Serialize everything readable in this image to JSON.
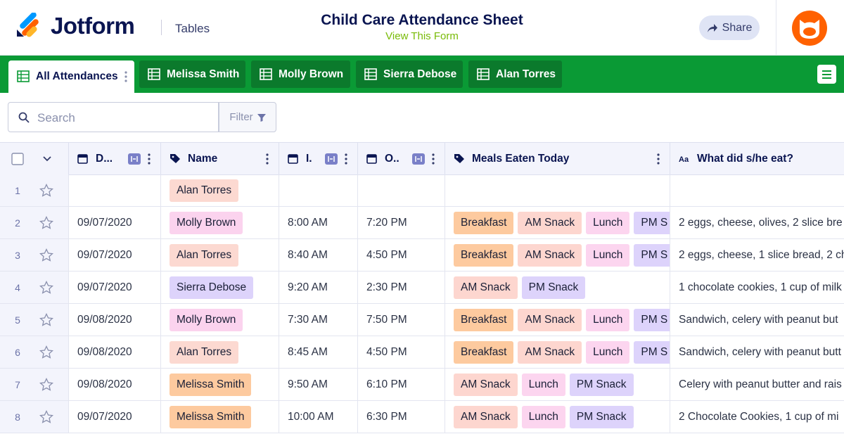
{
  "header": {
    "brand": "Jotform",
    "section": "Tables",
    "title": "Child Care Attendance Sheet",
    "subtitle": "View This Form",
    "share": "Share"
  },
  "tabs": [
    "All Attendances",
    "Melissa Smith",
    "Molly Brown",
    "Sierra Debose",
    "Alan Torres"
  ],
  "toolbar": {
    "search": "Search",
    "filter": "Filter"
  },
  "table": {
    "columns": [
      "D...",
      "Name",
      "I.",
      "O..",
      "Meals Eaten Today",
      "What did s/he eat?"
    ],
    "rows": [
      {
        "num": 1,
        "name": {
          "text": "Alan Torres",
          "color": "#fcd9d1"
        }
      },
      {
        "num": 2,
        "date": "09/07/2020",
        "name": {
          "text": "Molly Brown",
          "color": "#fbd3ee"
        },
        "in": "8:00 AM",
        "out": "7:20 PM",
        "meals": [
          {
            "text": "Breakfast",
            "color": "#fdca9f"
          },
          {
            "text": "AM Snack",
            "color": "#fdd6cf"
          },
          {
            "text": "Lunch",
            "color": "#fcd5ef"
          },
          {
            "text": "PM S",
            "color": "#ddd3fb"
          }
        ],
        "ate": "2 eggs, cheese, olives, 2 slice bre"
      },
      {
        "num": 3,
        "date": "09/07/2020",
        "name": {
          "text": "Alan Torres",
          "color": "#fcd9d1"
        },
        "in": "8:40 AM",
        "out": "4:50 PM",
        "meals": [
          {
            "text": "Breakfast",
            "color": "#fdca9f"
          },
          {
            "text": "AM Snack",
            "color": "#fdd6cf"
          },
          {
            "text": "Lunch",
            "color": "#fcd5ef"
          },
          {
            "text": "PM S",
            "color": "#ddd3fb"
          }
        ],
        "ate": "2 eggs, cheese, 1 slice bread, 2 ch"
      },
      {
        "num": 4,
        "date": "09/07/2020",
        "name": {
          "text": "Sierra Debose",
          "color": "#ddd3fb"
        },
        "in": "9:20 AM",
        "out": "2:30 PM",
        "meals": [
          {
            "text": "AM Snack",
            "color": "#fdd6cf"
          },
          {
            "text": "PM Snack",
            "color": "#ddd3fb"
          }
        ],
        "ate": "1 chocolate cookies, 1 cup of milk"
      },
      {
        "num": 5,
        "date": "09/08/2020",
        "name": {
          "text": "Molly Brown",
          "color": "#fbd3ee"
        },
        "in": "7:30 AM",
        "out": "7:50 PM",
        "meals": [
          {
            "text": "Breakfast",
            "color": "#fdca9f"
          },
          {
            "text": "AM Snack",
            "color": "#fdd6cf"
          },
          {
            "text": "Lunch",
            "color": "#fcd5ef"
          },
          {
            "text": "PM S",
            "color": "#ddd3fb"
          }
        ],
        "ate": "Sandwich, celery with peanut but"
      },
      {
        "num": 6,
        "date": "09/08/2020",
        "name": {
          "text": "Alan Torres",
          "color": "#fcd9d1"
        },
        "in": "8:45 AM",
        "out": "4:50 PM",
        "meals": [
          {
            "text": "Breakfast",
            "color": "#fdca9f"
          },
          {
            "text": "AM Snack",
            "color": "#fdd6cf"
          },
          {
            "text": "Lunch",
            "color": "#fcd5ef"
          },
          {
            "text": "PM S",
            "color": "#ddd3fb"
          }
        ],
        "ate": "Sandwich, celery with peanut butt"
      },
      {
        "num": 7,
        "date": "09/08/2020",
        "name": {
          "text": "Melissa Smith",
          "color": "#fdca9f"
        },
        "in": "9:50 AM",
        "out": "6:10 PM",
        "meals": [
          {
            "text": "AM Snack",
            "color": "#fdd6cf"
          },
          {
            "text": "Lunch",
            "color": "#fcd5ef"
          },
          {
            "text": "PM Snack",
            "color": "#ddd3fb"
          }
        ],
        "ate": "Celery with peanut butter and rais"
      },
      {
        "num": 8,
        "date": "09/07/2020",
        "name": {
          "text": "Melissa Smith",
          "color": "#fdca9f"
        },
        "in": "10:00 AM",
        "out": "6:30 PM",
        "meals": [
          {
            "text": "AM Snack",
            "color": "#fdd6cf"
          },
          {
            "text": "Lunch",
            "color": "#fcd5ef"
          },
          {
            "text": "PM Snack",
            "color": "#ddd3fb"
          }
        ],
        "ate": "2 Chocolate Cookies, 1 cup of mi"
      }
    ]
  }
}
